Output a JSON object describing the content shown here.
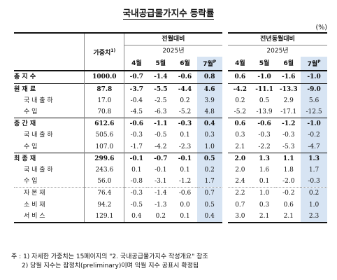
{
  "title": "국내공급물가지수 등락률",
  "unit": "(%)",
  "header": {
    "weight": "가중치",
    "weight_note": "1)",
    "mom": "전월대비",
    "yoy": "전년동월대비",
    "year": "2025년",
    "months": [
      "4월",
      "5월",
      "6월",
      "7월"
    ],
    "p": "P"
  },
  "rows": [
    {
      "label": "총 지 수",
      "weight": "1000.0",
      "mom": [
        "-0.7",
        "-1.4",
        "-0.6",
        "0.8"
      ],
      "yoy": [
        "0.6",
        "-1.0",
        "-1.6",
        "-1.0"
      ],
      "kind": "total"
    },
    {
      "label": "원 재 료",
      "weight": "87.8",
      "mom": [
        "-3.7",
        "-5.5",
        "-4.4",
        "4.6"
      ],
      "yoy": [
        "-4.2",
        "-11.1",
        "-13.3",
        "-9.0"
      ],
      "kind": "major"
    },
    {
      "label": "국 내 출 하",
      "weight": "17.0",
      "mom": [
        "-0.4",
        "-2.5",
        "0.2",
        "3.9"
      ],
      "yoy": [
        "0.2",
        "0.5",
        "2.9",
        "5.6"
      ],
      "kind": "sub"
    },
    {
      "label": "수 입",
      "weight": "70.8",
      "mom": [
        "-4.5",
        "-6.3",
        "-5.2",
        "4.8"
      ],
      "yoy": [
        "-5.2",
        "-13.9",
        "-17.1",
        "-12.5"
      ],
      "kind": "sub"
    },
    {
      "label": "중 간 재",
      "weight": "612.6",
      "mom": [
        "-0.6",
        "-1.1",
        "-0.3",
        "0.4"
      ],
      "yoy": [
        "0.6",
        "-0.6",
        "-1.2",
        "-1.0"
      ],
      "kind": "major"
    },
    {
      "label": "국 내 출 하",
      "weight": "505.6",
      "mom": [
        "-0.3",
        "-0.5",
        "0.1",
        "0.3"
      ],
      "yoy": [
        "0.3",
        "-0.3",
        "-0.3",
        "-0.2"
      ],
      "kind": "sub"
    },
    {
      "label": "수 입",
      "weight": "107.0",
      "mom": [
        "-1.7",
        "-4.2",
        "-2.3",
        "1.0"
      ],
      "yoy": [
        "2.1",
        "-2.2",
        "-5.3",
        "-4.7"
      ],
      "kind": "sub"
    },
    {
      "label": "최 종 재",
      "weight": "299.6",
      "mom": [
        "-0.1",
        "-0.7",
        "-0.1",
        "0.5"
      ],
      "yoy": [
        "2.0",
        "1.3",
        "1.1",
        "1.3"
      ],
      "kind": "major"
    },
    {
      "label": "국 내 출 하",
      "weight": "243.6",
      "mom": [
        "0.1",
        "-0.1",
        "0.1",
        "0.2"
      ],
      "yoy": [
        "2.0",
        "1.6",
        "1.8",
        "1.7"
      ],
      "kind": "sub"
    },
    {
      "label": "수 입",
      "weight": "56.0",
      "mom": [
        "-0.8",
        "-3.1",
        "-1.2",
        "1.7"
      ],
      "yoy": [
        "2.4",
        "0.1",
        "-2.0",
        "-0.3"
      ],
      "kind": "sub"
    },
    {
      "label": "자 본 재",
      "weight": "76.4",
      "mom": [
        "-0.3",
        "-1.4",
        "-0.6",
        "0.7"
      ],
      "yoy": [
        "2.2",
        "1.0",
        "-0.2",
        "0.2"
      ],
      "kind": "sub2"
    },
    {
      "label": "소 비 재",
      "weight": "94.2",
      "mom": [
        "-0.5",
        "-1.3",
        "0.0",
        "0.5"
      ],
      "yoy": [
        "0.7",
        "0.3",
        "0.6",
        "1.0"
      ],
      "kind": "sub2"
    },
    {
      "label": "서 비 스",
      "weight": "129.1",
      "mom": [
        "0.4",
        "0.2",
        "0.1",
        "0.4"
      ],
      "yoy": [
        "3.0",
        "2.1",
        "2.1",
        "2.3"
      ],
      "kind": "sub2"
    }
  ],
  "notes": {
    "prefix": "주 :",
    "n1": "1) 자세한 가중치는 15페이지의 \"2. 국내공급물가지수 작성개요\" 참조",
    "n2": "2) 당월 지수는 잠정치(preliminary)이며 익월 지수 공표시 확정됨"
  }
}
